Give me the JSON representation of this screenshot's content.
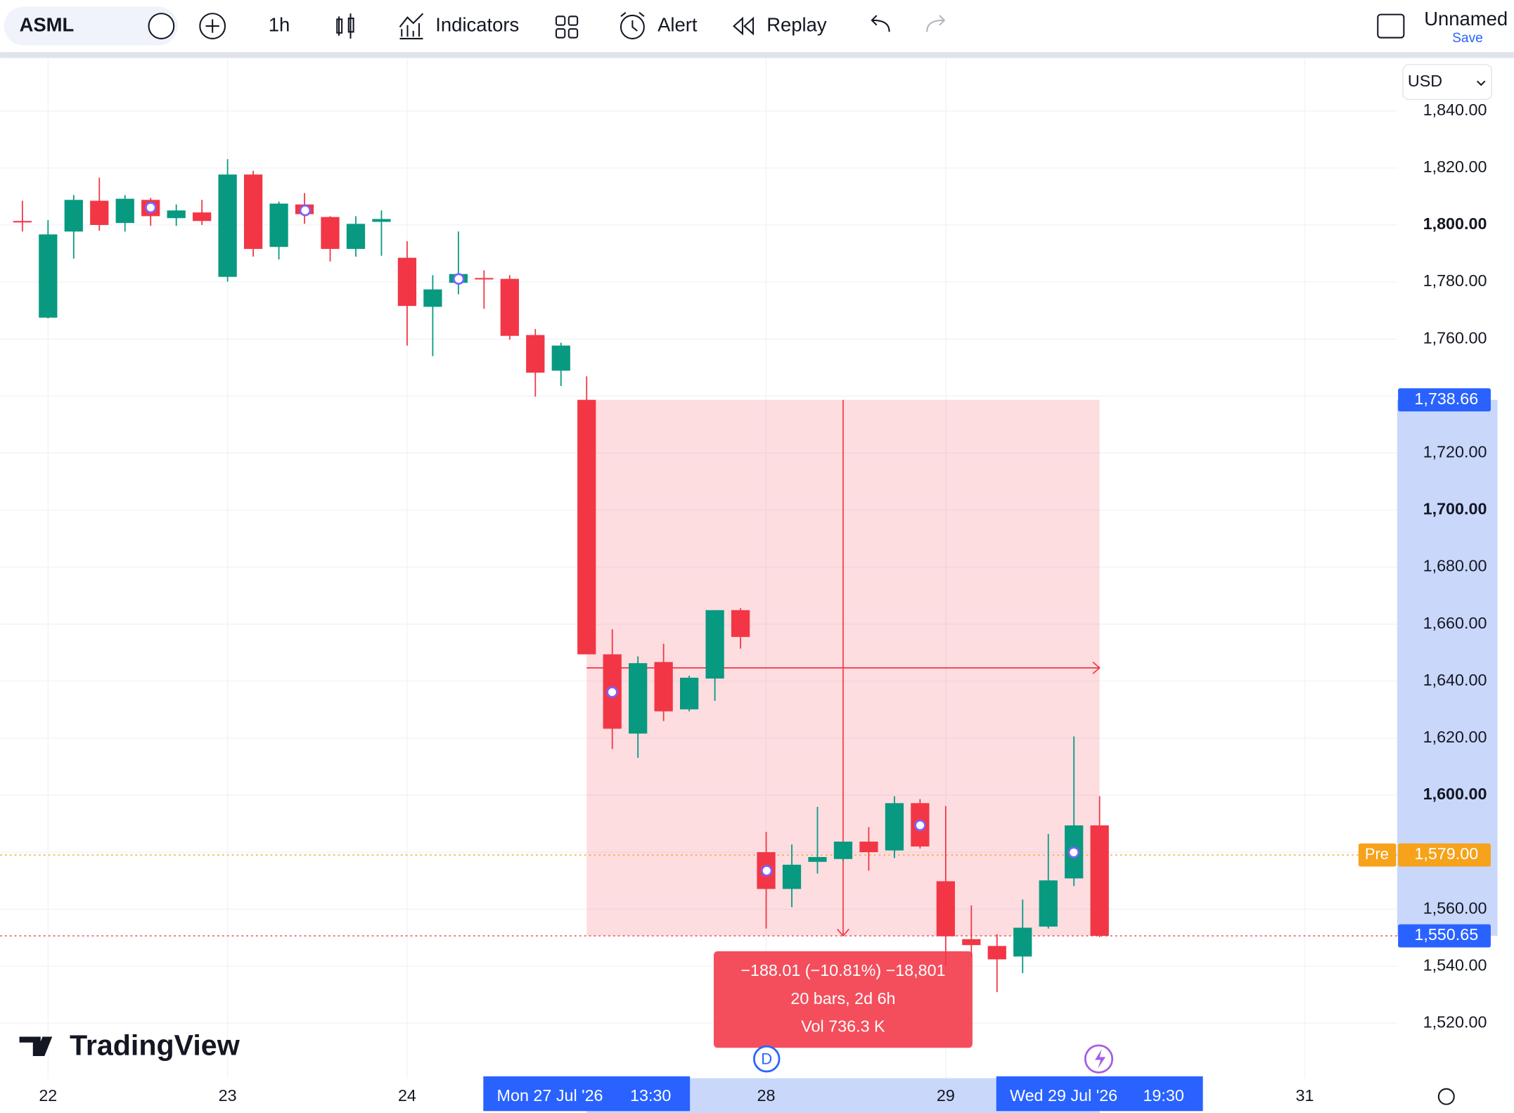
{
  "toolbar": {
    "symbol": "ASML",
    "interval": "1h",
    "indicators": "Indicators",
    "alert": "Alert",
    "replay": "Replay",
    "layout_name": "Unnamed",
    "save": "Save",
    "currency": "USD"
  },
  "brand": "TradingView",
  "dividend_marker": "D",
  "chart_data": {
    "type": "candlestick",
    "up_color": "#089981",
    "down_color": "#f23645",
    "open": [
      1801.4,
      1767.5,
      1797.7,
      1808.5,
      1800.7,
      1808.8,
      1802.4,
      1804.4,
      1781.8,
      1817.7,
      1792.3,
      1807.2,
      1802.8,
      1791.6,
      1801.1,
      1788.5,
      1771.3,
      1779.7,
      1781.4,
      1781.1,
      1761.4,
      1748.9,
      1738.66,
      1649.4,
      1621.6,
      1646.7,
      1630.1,
      1640.9,
      1664.9,
      1580.0,
      1567.1,
      1576.6,
      1577.6,
      1583.7,
      1580.6,
      1597.2,
      1569.8,
      1549.5,
      1547.1,
      1543.4,
      1553.9,
      1570.8,
      1589.4
    ],
    "high": [
      1808.5,
      1801.7,
      1810.5,
      1816.6,
      1810.5,
      1809.5,
      1807.2,
      1808.8,
      1823.1,
      1819.0,
      1808.2,
      1811.2,
      1803.1,
      1803.1,
      1805.1,
      1794.3,
      1782.4,
      1797.7,
      1784.1,
      1782.4,
      1763.5,
      1758.7,
      1746.9,
      1658.2,
      1648.7,
      1653.1,
      1641.9,
      1664.9,
      1665.6,
      1587.1,
      1582.7,
      1595.9,
      1583.7,
      1588.8,
      1599.6,
      1598.6,
      1596.2,
      1561.3,
      1551.2,
      1563.4,
      1586.4,
      1620.6,
      1599.6
    ],
    "low": [
      1797.7,
      1767.2,
      1788.2,
      1798.0,
      1797.7,
      1799.7,
      1799.7,
      1800.0,
      1780.1,
      1788.9,
      1787.9,
      1800.4,
      1787.2,
      1788.9,
      1789.2,
      1757.7,
      1754.0,
      1775.7,
      1770.6,
      1759.8,
      1739.8,
      1743.5,
      1649.4,
      1616.2,
      1613.1,
      1626.0,
      1629.4,
      1633.1,
      1651.4,
      1553.2,
      1560.7,
      1572.5,
      1576.9,
      1573.5,
      1577.9,
      1581.3,
      1540.3,
      1543.7,
      1530.9,
      1537.6,
      1553.2,
      1568.1,
      1550.2
    ],
    "close": [
      1801.1,
      1796.7,
      1808.8,
      1800.0,
      1809.2,
      1803.1,
      1805.1,
      1801.4,
      1817.7,
      1791.6,
      1807.5,
      1803.8,
      1791.6,
      1800.4,
      1802.1,
      1771.6,
      1777.4,
      1782.8,
      1781.1,
      1761.1,
      1748.2,
      1757.7,
      1649.4,
      1623.3,
      1646.3,
      1629.4,
      1641.2,
      1664.9,
      1655.5,
      1567.1,
      1575.6,
      1578.3,
      1583.7,
      1580.0,
      1597.2,
      1582.0,
      1550.5,
      1547.4,
      1542.4,
      1553.5,
      1570.1,
      1589.4,
      1550.65
    ],
    "xlim": [
      -0.87,
      53.6
    ],
    "xticks": [
      {
        "value": 1,
        "label": "22"
      },
      {
        "value": 8,
        "label": "23"
      },
      {
        "value": 15,
        "label": "24"
      },
      {
        "value": 29,
        "label": "28"
      },
      {
        "value": 36,
        "label": "29"
      },
      {
        "value": 50,
        "label": "31"
      }
    ],
    "ylim": [
      1500.7,
      1858.6
    ],
    "yticks": [
      {
        "value": 1520,
        "label": "1,520.00"
      },
      {
        "value": 1540,
        "label": "1,540.00"
      },
      {
        "value": 1560,
        "label": "1,560.00"
      },
      {
        "value": 1580,
        "label": "1,580.00"
      },
      {
        "value": 1600,
        "label": "1,600.00"
      },
      {
        "value": 1620,
        "label": "1,620.00"
      },
      {
        "value": 1640,
        "label": "1,640.00"
      },
      {
        "value": 1660,
        "label": "1,660.00"
      },
      {
        "value": 1680,
        "label": "1,680.00"
      },
      {
        "value": 1700,
        "label": "1,700.00"
      },
      {
        "value": 1720,
        "label": "1,720.00"
      },
      {
        "value": 1740,
        "label": "1,740.00"
      },
      {
        "value": 1760,
        "label": "1,760.00"
      },
      {
        "value": 1780,
        "label": "1,780.00"
      },
      {
        "value": 1800,
        "label": "1,800.00"
      },
      {
        "value": 1820,
        "label": "1,820.00"
      },
      {
        "value": 1840,
        "label": "1,840.00"
      }
    ],
    "grid": true,
    "premarket": {
      "tag": "Pre",
      "value": 1579.0,
      "label": "1,579.00",
      "color": "#f7a21b"
    },
    "measure": {
      "from": 22,
      "to": 42,
      "start": {
        "value": 1738.66,
        "label": "1,738.66"
      },
      "end": {
        "value": 1550.65,
        "label": "1,550.65"
      },
      "color": "#f23645",
      "axis_color": "#2962ff",
      "lines": [
        "−188.01 (−10.81%) −18,801",
        "20 bars, 2d 6h",
        "Vol 736.3 K"
      ],
      "from_label": [
        "Mon 27 Jul '26",
        "13:30"
      ],
      "to_label": [
        "Wed 29 Jul '26",
        "19:30"
      ]
    }
  }
}
